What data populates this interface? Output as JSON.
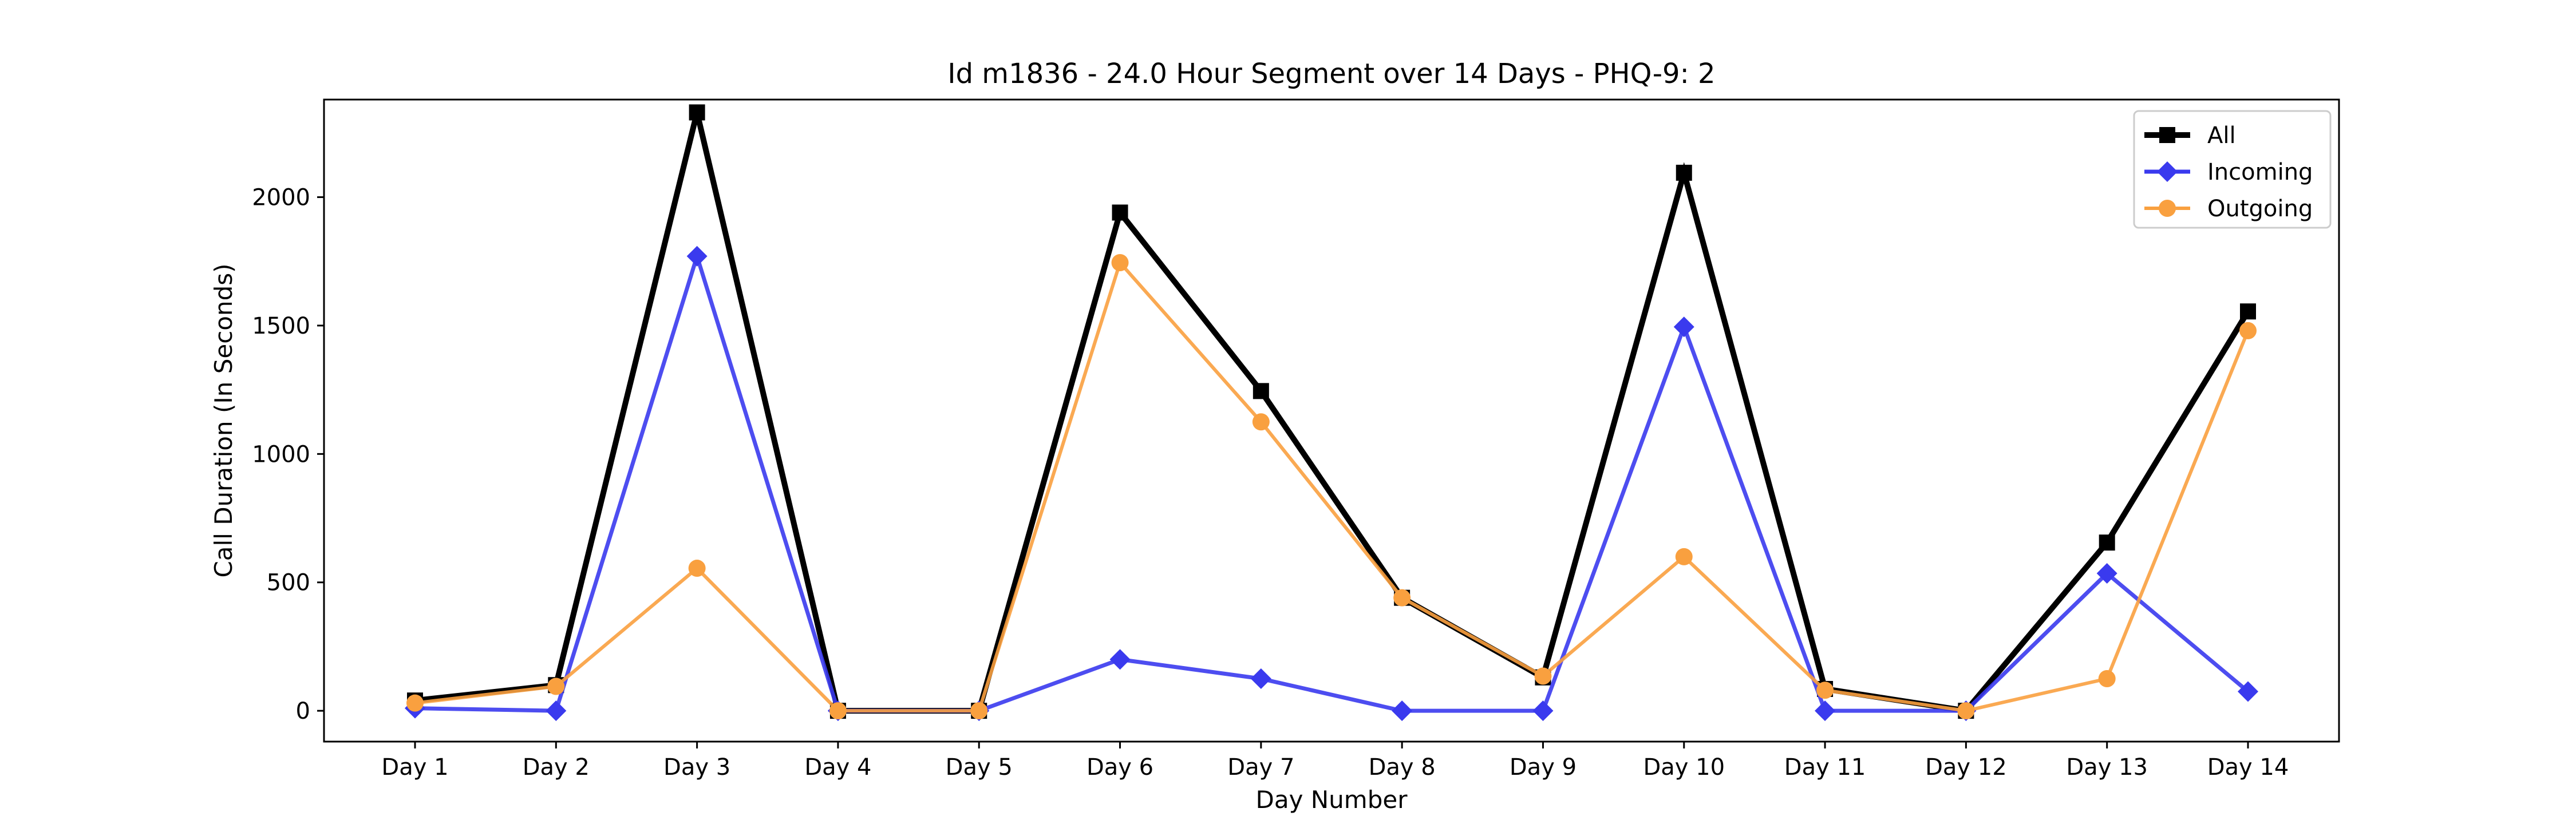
{
  "chart_data": {
    "type": "line",
    "title": "Id m1836 - 24.0 Hour Segment over 14 Days - PHQ-9: 2",
    "xlabel": "Day Number",
    "ylabel": "Call Duration (In Seconds)",
    "categories": [
      "Day 1",
      "Day 2",
      "Day 3",
      "Day 4",
      "Day 5",
      "Day 6",
      "Day 7",
      "Day 8",
      "Day 9",
      "Day 10",
      "Day 11",
      "Day 12",
      "Day 13",
      "Day 14"
    ],
    "ylim": [
      -120,
      2380
    ],
    "yticks": [
      0,
      500,
      1000,
      1500,
      2000
    ],
    "grid": false,
    "legend_position": "top-right",
    "series": [
      {
        "name": "All",
        "color": "#000000",
        "marker": "square",
        "values": [
          40,
          100,
          2330,
          0,
          0,
          1940,
          1245,
          440,
          130,
          2095,
          85,
          0,
          655,
          1555
        ]
      },
      {
        "name": "Incoming",
        "color": "#3a3aee",
        "marker": "diamond",
        "values": [
          10,
          0,
          1770,
          0,
          0,
          200,
          125,
          0,
          0,
          1495,
          0,
          0,
          535,
          75
        ]
      },
      {
        "name": "Outgoing",
        "color": "#f9a03f",
        "marker": "circle",
        "values": [
          30,
          95,
          555,
          0,
          0,
          1745,
          1125,
          440,
          135,
          600,
          80,
          0,
          125,
          1480
        ]
      }
    ]
  }
}
